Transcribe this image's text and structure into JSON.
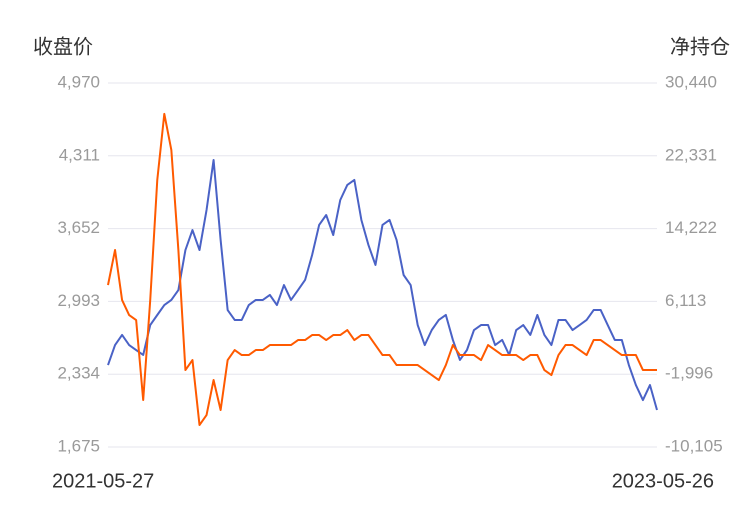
{
  "chart_data": {
    "type": "line",
    "y_label": "收盘价",
    "y2_label": "净持仓",
    "categories": [
      "2021-05-27",
      null,
      null,
      null,
      null,
      null,
      null,
      null,
      null,
      null,
      null,
      null,
      null,
      null,
      null,
      null,
      null,
      null,
      null,
      null,
      null,
      null,
      null,
      null,
      null,
      null,
      null,
      null,
      null,
      null,
      null,
      null,
      null,
      null,
      null,
      null,
      null,
      null,
      null,
      null,
      null,
      null,
      null,
      null,
      null,
      null,
      null,
      null,
      null,
      null,
      null,
      null,
      null,
      null,
      null,
      null,
      null,
      null,
      null,
      null,
      null,
      null,
      null,
      null,
      null,
      null,
      null,
      null,
      null,
      null,
      null,
      null,
      null,
      null,
      null,
      null,
      null,
      null,
      "2023-05-26"
    ],
    "series": [
      {
        "color": "#4a62c6",
        "axis": "y",
        "values": [
          2417,
          2598,
          2689,
          2598,
          2553,
          2508,
          2779,
          2870,
          2960,
          3006,
          3096,
          3458,
          3639,
          3458,
          3820,
          4273,
          3549,
          2915,
          2825,
          2825,
          2960,
          3006,
          3006,
          3051,
          2960,
          3141,
          3006,
          3096,
          3187,
          3413,
          3685,
          3775,
          3594,
          3911,
          4047,
          4092,
          3730,
          3504,
          3323,
          3685,
          3730,
          3549,
          3232,
          3141,
          2779,
          2598,
          2734,
          2825,
          2870,
          2644,
          2463,
          2553,
          2734,
          2779,
          2779,
          2598,
          2644,
          2508,
          2734,
          2779,
          2689,
          2870,
          2689,
          2598,
          2825,
          2825,
          2734,
          2779,
          2825,
          2915,
          2915,
          2779,
          2644,
          2644,
          2417,
          2236,
          2100,
          2236,
          2010
        ]
      },
      {
        "color": "#ff5a00",
        "axis": "y2",
        "values": [
          7937,
          11836,
          6266,
          4595,
          4038,
          -4874,
          6266,
          19634,
          27000,
          22976,
          11836,
          -1532,
          -418,
          -7659,
          -6545,
          -2646,
          -5988,
          -418,
          696,
          139,
          139,
          696,
          696,
          1253,
          1253,
          1253,
          1253,
          1810,
          1810,
          2367,
          2367,
          1810,
          2367,
          2367,
          2924,
          1810,
          2367,
          2367,
          1253,
          139,
          139,
          -975,
          -975,
          -975,
          -975,
          -1532,
          -2089,
          -2646,
          -975,
          1253,
          139,
          139,
          139,
          -418,
          1253,
          696,
          139,
          139,
          139,
          -418,
          139,
          139,
          -1532,
          -2089,
          139,
          1253,
          1253,
          696,
          139,
          1810,
          1810,
          1253,
          696,
          139,
          139,
          139,
          -1532,
          -1532,
          -1532
        ]
      }
    ],
    "ylim": [
      1675,
      4970
    ],
    "yticks": [
      {
        "value": 1675,
        "label": "1,675"
      },
      {
        "value": 2334,
        "label": "2,334"
      },
      {
        "value": 2993,
        "label": "2,993"
      },
      {
        "value": 3652,
        "label": "3,652"
      },
      {
        "value": 4311,
        "label": "4,311"
      },
      {
        "value": 4970,
        "label": "4,970"
      }
    ],
    "y2lim": [
      -10105,
      30440
    ],
    "y2ticks": [
      {
        "value": -10105,
        "label": "-10,105"
      },
      {
        "value": -1996,
        "label": "-1,996"
      },
      {
        "value": 6113,
        "label": "6,113"
      },
      {
        "value": 14222,
        "label": "14,222"
      },
      {
        "value": 22331,
        "label": "22,331"
      },
      {
        "value": 30440,
        "label": "30,440"
      }
    ],
    "grid": true
  }
}
